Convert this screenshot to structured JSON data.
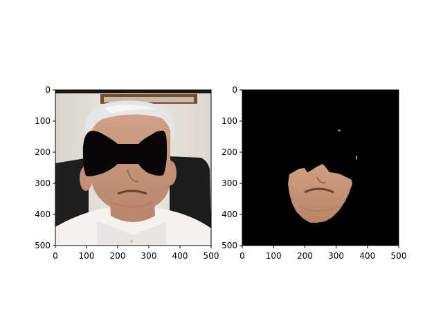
{
  "figure": {
    "background": "#ffffff",
    "panels_description_note": ""
  },
  "chart_data": [
    {
      "type": "image",
      "panel": "left",
      "xlim": [
        0,
        500
      ],
      "ylim": [
        500,
        0
      ],
      "xticks": [
        0,
        100,
        200,
        300,
        400,
        500
      ],
      "yticks": [
        0,
        100,
        200,
        300,
        400,
        500
      ],
      "xtick_labels": [
        "0",
        "100",
        "200",
        "300",
        "400",
        "500"
      ],
      "ytick_labels": [
        "0",
        "100",
        "200",
        "300",
        "400",
        "500"
      ],
      "grid": false,
      "mask": {
        "shape": "bow-tie",
        "color": "#0a0606",
        "left_lobe_x": [
          88,
          170
        ],
        "right_lobe_x": [
          250,
          350
        ],
        "center_band_x": [
          170,
          250
        ],
        "y_range": [
          130,
          280
        ],
        "center_band_y": [
          175,
          235
        ]
      },
      "colors": {
        "wall": "#e8e4dc",
        "frame_top": "#1a1412",
        "frame_wood": "#7a4a30",
        "chair": "#1c1c1e",
        "hair": "#e6e6e6",
        "skin": "#c99a7e",
        "shirt": "#f4f1ee"
      }
    },
    {
      "type": "image",
      "panel": "right",
      "xlim": [
        0,
        500
      ],
      "ylim": [
        500,
        0
      ],
      "xticks": [
        0,
        100,
        200,
        300,
        400,
        500
      ],
      "yticks": [
        0,
        100,
        200,
        300,
        400,
        500
      ],
      "xtick_labels": [
        "0",
        "100",
        "200",
        "300",
        "400",
        "500"
      ],
      "ytick_labels": [
        "0",
        "100",
        "200",
        "300",
        "400",
        "500"
      ],
      "grid": false,
      "background": "#000000",
      "skin_region": {
        "x_range": [
          148,
          355
        ],
        "y_range": [
          240,
          430
        ],
        "color": "#c39676"
      },
      "specks": [
        {
          "x": 305,
          "y": 128
        },
        {
          "x": 363,
          "y": 212
        }
      ]
    }
  ]
}
